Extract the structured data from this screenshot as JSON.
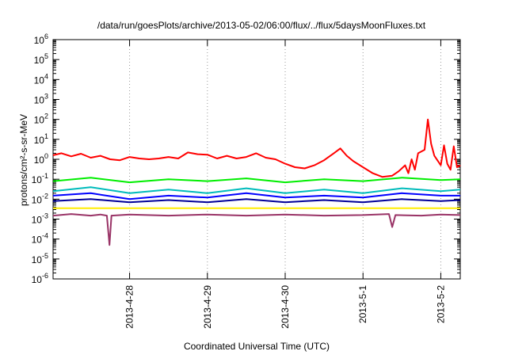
{
  "chart_data": {
    "type": "line",
    "title": "/data/run/goesPlots/archive/2013-05-02/06:00/flux/../flux/5daysMoonFluxes.txt",
    "xlabel": "Coordinated Universal Time (UTC)",
    "ylabel": "protons/cm²-s-sr-MeV",
    "yscale": "log",
    "ylim": [
      1e-06,
      1000000.0
    ],
    "xlim": [
      "2013-04-27T00:24",
      "2013-05-02T06:00"
    ],
    "x_ticks": [
      "2013-4-28",
      "2013-4-29",
      "2013-4-30",
      "2013-5-1",
      "2013-5-2"
    ],
    "y_ticks": [
      {
        "base": "10",
        "exp": "-6"
      },
      {
        "base": "10",
        "exp": "-5"
      },
      {
        "base": "10",
        "exp": "-4"
      },
      {
        "base": "10",
        "exp": "-3"
      },
      {
        "base": "10",
        "exp": "-2"
      },
      {
        "base": "10",
        "exp": "-1"
      },
      {
        "base": "10",
        "exp": "0"
      },
      {
        "base": "10",
        "exp": "1"
      },
      {
        "base": "10",
        "exp": "2"
      },
      {
        "base": "10",
        "exp": "3"
      },
      {
        "base": "10",
        "exp": "4"
      },
      {
        "base": "10",
        "exp": "5"
      },
      {
        "base": "10",
        "exp": "6"
      }
    ],
    "grid": "vertical dotted at date ticks",
    "series": [
      {
        "color": "#ff0000",
        "points": [
          [
            "2013-04-27T00:24",
            1.6
          ],
          [
            "2013-04-27T03:00",
            2.0
          ],
          [
            "2013-04-27T06:00",
            1.4
          ],
          [
            "2013-04-27T09:00",
            1.9
          ],
          [
            "2013-04-27T12:00",
            1.2
          ],
          [
            "2013-04-27T15:00",
            1.5
          ],
          [
            "2013-04-27T18:00",
            1.0
          ],
          [
            "2013-04-27T21:00",
            0.9
          ],
          [
            "2013-04-28T00:00",
            1.3
          ],
          [
            "2013-04-28T03:00",
            1.1
          ],
          [
            "2013-04-28T06:00",
            1.0
          ],
          [
            "2013-04-28T09:00",
            1.1
          ],
          [
            "2013-04-28T12:00",
            1.3
          ],
          [
            "2013-04-28T15:00",
            1.1
          ],
          [
            "2013-04-28T18:00",
            2.2
          ],
          [
            "2013-04-28T21:00",
            1.8
          ],
          [
            "2013-04-29T00:00",
            1.7
          ],
          [
            "2013-04-29T03:00",
            1.1
          ],
          [
            "2013-04-29T06:00",
            1.5
          ],
          [
            "2013-04-29T09:00",
            1.1
          ],
          [
            "2013-04-29T12:00",
            1.3
          ],
          [
            "2013-04-29T15:00",
            2.0
          ],
          [
            "2013-04-29T18:00",
            1.2
          ],
          [
            "2013-04-29T21:00",
            1.0
          ],
          [
            "2013-04-30T00:00",
            0.6
          ],
          [
            "2013-04-30T03:00",
            0.4
          ],
          [
            "2013-04-30T06:00",
            0.35
          ],
          [
            "2013-04-30T09:00",
            0.5
          ],
          [
            "2013-04-30T12:00",
            0.9
          ],
          [
            "2013-04-30T15:00",
            2.0
          ],
          [
            "2013-04-30T17:00",
            3.5
          ],
          [
            "2013-04-30T19:00",
            1.5
          ],
          [
            "2013-04-30T21:00",
            0.8
          ],
          [
            "2013-05-01T00:00",
            0.4
          ],
          [
            "2013-05-01T03:00",
            0.2
          ],
          [
            "2013-05-01T06:00",
            0.13
          ],
          [
            "2013-05-01T09:00",
            0.15
          ],
          [
            "2013-05-01T11:00",
            0.25
          ],
          [
            "2013-05-01T13:00",
            0.5
          ],
          [
            "2013-05-01T14:00",
            0.2
          ],
          [
            "2013-05-01T15:00",
            1.0
          ],
          [
            "2013-05-01T16:00",
            0.3
          ],
          [
            "2013-05-01T17:00",
            2.0
          ],
          [
            "2013-05-01T19:00",
            3.0
          ],
          [
            "2013-05-01T20:00",
            100
          ],
          [
            "2013-05-01T21:00",
            6.0
          ],
          [
            "2013-05-01T22:00",
            1.5
          ],
          [
            "2013-05-02T00:00",
            0.5
          ],
          [
            "2013-05-02T01:00",
            5.0
          ],
          [
            "2013-05-02T02:00",
            0.6
          ],
          [
            "2013-05-02T03:00",
            0.3
          ],
          [
            "2013-05-02T04:00",
            4.5
          ],
          [
            "2013-05-02T05:00",
            0.4
          ],
          [
            "2013-05-02T06:00",
            0.5
          ]
        ]
      },
      {
        "color": "#00ee00",
        "points": [
          [
            "2013-04-27T00:24",
            0.08
          ],
          [
            "2013-04-27T12:00",
            0.12
          ],
          [
            "2013-04-28T00:00",
            0.07
          ],
          [
            "2013-04-28T12:00",
            0.1
          ],
          [
            "2013-04-29T00:00",
            0.08
          ],
          [
            "2013-04-29T12:00",
            0.11
          ],
          [
            "2013-04-30T00:00",
            0.07
          ],
          [
            "2013-04-30T12:00",
            0.1
          ],
          [
            "2013-05-01T00:00",
            0.08
          ],
          [
            "2013-05-01T12:00",
            0.12
          ],
          [
            "2013-05-02T00:00",
            0.09
          ],
          [
            "2013-05-02T06:00",
            0.1
          ]
        ]
      },
      {
        "color": "#00bbbb",
        "points": [
          [
            "2013-04-27T00:24",
            0.025
          ],
          [
            "2013-04-27T12:00",
            0.04
          ],
          [
            "2013-04-28T00:00",
            0.02
          ],
          [
            "2013-04-28T12:00",
            0.03
          ],
          [
            "2013-04-29T00:00",
            0.02
          ],
          [
            "2013-04-29T12:00",
            0.035
          ],
          [
            "2013-04-30T00:00",
            0.02
          ],
          [
            "2013-04-30T12:00",
            0.03
          ],
          [
            "2013-05-01T00:00",
            0.02
          ],
          [
            "2013-05-01T12:00",
            0.035
          ],
          [
            "2013-05-02T00:00",
            0.025
          ],
          [
            "2013-05-02T06:00",
            0.03
          ]
        ]
      },
      {
        "color": "#0000ff",
        "points": [
          [
            "2013-04-27T00:24",
            0.015
          ],
          [
            "2013-04-27T12:00",
            0.02
          ],
          [
            "2013-04-28T00:00",
            0.01
          ],
          [
            "2013-04-28T12:00",
            0.015
          ],
          [
            "2013-04-29T00:00",
            0.012
          ],
          [
            "2013-04-29T12:00",
            0.02
          ],
          [
            "2013-04-30T00:00",
            0.012
          ],
          [
            "2013-04-30T12:00",
            0.015
          ],
          [
            "2013-05-01T00:00",
            0.012
          ],
          [
            "2013-05-01T12:00",
            0.02
          ],
          [
            "2013-05-02T00:00",
            0.015
          ],
          [
            "2013-05-02T06:00",
            0.015
          ]
        ]
      },
      {
        "color": "#000099",
        "points": [
          [
            "2013-04-27T00:24",
            0.008
          ],
          [
            "2013-04-27T12:00",
            0.01
          ],
          [
            "2013-04-28T00:00",
            0.007
          ],
          [
            "2013-04-28T12:00",
            0.009
          ],
          [
            "2013-04-29T00:00",
            0.007
          ],
          [
            "2013-04-29T12:00",
            0.01
          ],
          [
            "2013-04-30T00:00",
            0.007
          ],
          [
            "2013-04-30T12:00",
            0.009
          ],
          [
            "2013-05-01T00:00",
            0.007
          ],
          [
            "2013-05-01T12:00",
            0.01
          ],
          [
            "2013-05-02T00:00",
            0.008
          ],
          [
            "2013-05-02T06:00",
            0.009
          ]
        ]
      },
      {
        "color": "#ffee00",
        "points": [
          [
            "2013-04-27T00:24",
            0.0035
          ],
          [
            "2013-04-28T00:00",
            0.0035
          ],
          [
            "2013-04-29T00:00",
            0.0035
          ],
          [
            "2013-04-30T00:00",
            0.0035
          ],
          [
            "2013-05-01T00:00",
            0.0035
          ],
          [
            "2013-05-02T06:00",
            0.0035
          ]
        ]
      },
      {
        "color": "#993366",
        "points": [
          [
            "2013-04-27T00:24",
            0.0015
          ],
          [
            "2013-04-27T06:00",
            0.0018
          ],
          [
            "2013-04-27T12:00",
            0.0015
          ],
          [
            "2013-04-27T15:00",
            0.0017
          ],
          [
            "2013-04-27T17:00",
            0.0015
          ],
          [
            "2013-04-27T17:48",
            5e-05
          ],
          [
            "2013-04-27T18:24",
            0.0015
          ],
          [
            "2013-04-28T00:00",
            0.0017
          ],
          [
            "2013-04-28T12:00",
            0.0015
          ],
          [
            "2013-04-29T00:00",
            0.0017
          ],
          [
            "2013-04-29T12:00",
            0.0015
          ],
          [
            "2013-04-30T00:00",
            0.0017
          ],
          [
            "2013-04-30T12:00",
            0.0015
          ],
          [
            "2013-05-01T00:00",
            0.0016
          ],
          [
            "2013-05-01T08:00",
            0.0018
          ],
          [
            "2013-05-01T09:00",
            0.0004
          ],
          [
            "2013-05-01T10:00",
            0.0016
          ],
          [
            "2013-05-01T18:00",
            0.0015
          ],
          [
            "2013-05-02T00:00",
            0.0017
          ],
          [
            "2013-05-02T06:00",
            0.0016
          ]
        ]
      }
    ]
  }
}
